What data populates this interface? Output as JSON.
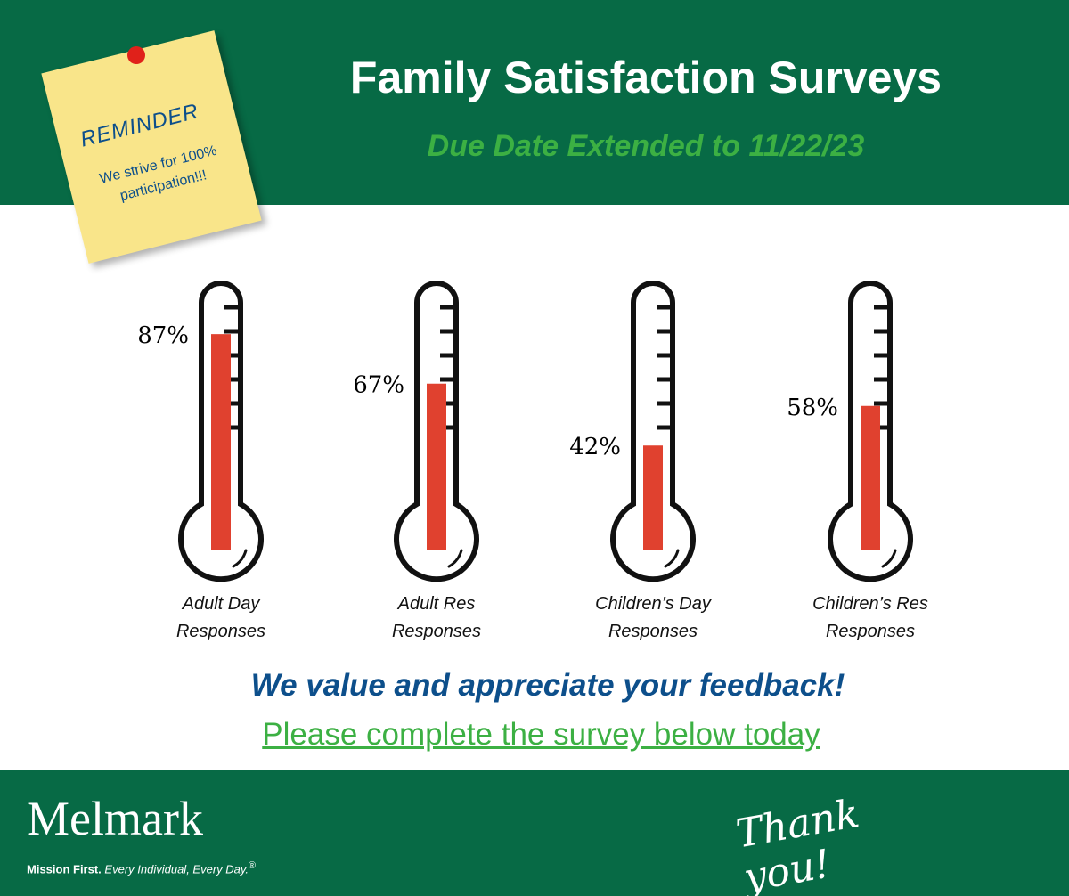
{
  "title": "Family Satisfaction Surveys",
  "subtitle": "Due Date Extended to 11/22/23",
  "note": {
    "heading": "REMINDER",
    "text": "We strive for 100% participation!!!"
  },
  "chart_data": {
    "type": "thermometer",
    "categories": [
      "Adult Day Responses",
      "Adult Res Responses",
      "Children’s Day Responses",
      "Children’s Res Responses"
    ],
    "values": [
      87,
      67,
      42,
      58
    ],
    "value_labels": [
      "87%",
      "67%",
      "42%",
      "58%"
    ],
    "color": "#e0412f",
    "ylim": [
      0,
      100
    ]
  },
  "message": "We value and appreciate your feedback!",
  "link": "Please complete the survey below today",
  "footer": {
    "brand": "Melmark",
    "tagline_bold": "Mission First.",
    "tagline": "Every Individual, Every Day.",
    "mark": "®",
    "thanks": "Thank you!"
  }
}
